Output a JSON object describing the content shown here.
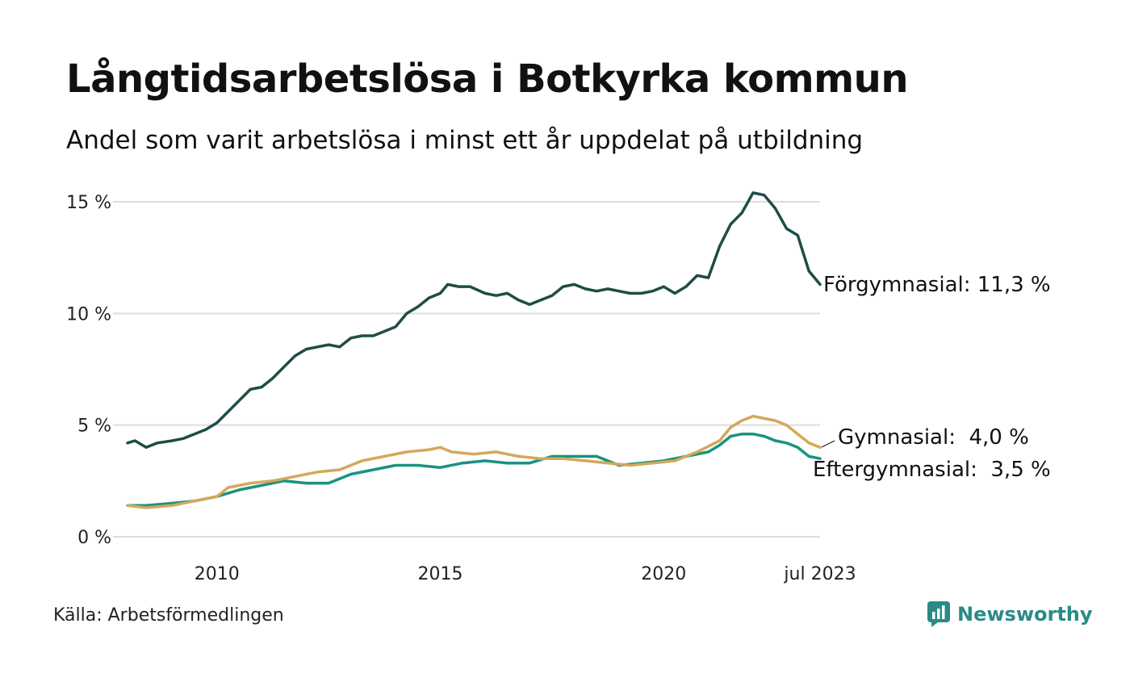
{
  "header": {
    "title": "Långtidsarbetslösa i Botkyrka kommun",
    "subtitle": "Andel som varit arbetslösa i minst ett år uppdelat på utbildning"
  },
  "footer": {
    "source": "Källa: Arbetsförmedlingen",
    "brand": "Newsworthy"
  },
  "colors": {
    "forgymnasial": "#1e4d47",
    "gymnasial": "#d4a85a",
    "eftergymnasial": "#1a9281",
    "grid": "#dddddd"
  },
  "chart_data": {
    "type": "line",
    "x_range": [
      "2008-01",
      "2023-07"
    ],
    "ylim": [
      0,
      15
    ],
    "yticks": [
      {
        "value": 0,
        "label": "0 %"
      },
      {
        "value": 5,
        "label": "5 %"
      },
      {
        "value": 10,
        "label": "10 %"
      },
      {
        "value": 15,
        "label": "15 %"
      }
    ],
    "xticks": [
      {
        "date": "2010-01",
        "label": "2010"
      },
      {
        "date": "2015-01",
        "label": "2015"
      },
      {
        "date": "2020-01",
        "label": "2020"
      },
      {
        "date": "2023-07",
        "label": "jul 2023"
      }
    ],
    "grid": true,
    "legend": "end-of-line labels",
    "series": [
      {
        "name": "Förgymnasial",
        "end_label": "Förgymnasial: 11,3 %",
        "color_key": "forgymnasial",
        "points": [
          [
            "2008-01",
            4.2
          ],
          [
            "2008-03",
            4.3
          ],
          [
            "2008-06",
            4.0
          ],
          [
            "2008-09",
            4.2
          ],
          [
            "2009-01",
            4.3
          ],
          [
            "2009-04",
            4.4
          ],
          [
            "2009-07",
            4.6
          ],
          [
            "2009-10",
            4.8
          ],
          [
            "2010-01",
            5.1
          ],
          [
            "2010-04",
            5.6
          ],
          [
            "2010-07",
            6.1
          ],
          [
            "2010-10",
            6.6
          ],
          [
            "2011-01",
            6.7
          ],
          [
            "2011-04",
            7.1
          ],
          [
            "2011-07",
            7.6
          ],
          [
            "2011-10",
            8.1
          ],
          [
            "2012-01",
            8.4
          ],
          [
            "2012-04",
            8.5
          ],
          [
            "2012-07",
            8.6
          ],
          [
            "2012-10",
            8.5
          ],
          [
            "2013-01",
            8.9
          ],
          [
            "2013-04",
            9.0
          ],
          [
            "2013-07",
            9.0
          ],
          [
            "2013-10",
            9.2
          ],
          [
            "2014-01",
            9.4
          ],
          [
            "2014-04",
            10.0
          ],
          [
            "2014-07",
            10.3
          ],
          [
            "2014-10",
            10.7
          ],
          [
            "2015-01",
            10.9
          ],
          [
            "2015-03",
            11.3
          ],
          [
            "2015-06",
            11.2
          ],
          [
            "2015-09",
            11.2
          ],
          [
            "2016-01",
            10.9
          ],
          [
            "2016-04",
            10.8
          ],
          [
            "2016-07",
            10.9
          ],
          [
            "2016-10",
            10.6
          ],
          [
            "2017-01",
            10.4
          ],
          [
            "2017-04",
            10.6
          ],
          [
            "2017-07",
            10.8
          ],
          [
            "2017-10",
            11.2
          ],
          [
            "2018-01",
            11.3
          ],
          [
            "2018-04",
            11.1
          ],
          [
            "2018-07",
            11.0
          ],
          [
            "2018-10",
            11.1
          ],
          [
            "2019-01",
            11.0
          ],
          [
            "2019-04",
            10.9
          ],
          [
            "2019-07",
            10.9
          ],
          [
            "2019-10",
            11.0
          ],
          [
            "2020-01",
            11.2
          ],
          [
            "2020-04",
            10.9
          ],
          [
            "2020-07",
            11.2
          ],
          [
            "2020-10",
            11.7
          ],
          [
            "2021-01",
            11.6
          ],
          [
            "2021-04",
            13.0
          ],
          [
            "2021-07",
            14.0
          ],
          [
            "2021-10",
            14.5
          ],
          [
            "2022-01",
            15.4
          ],
          [
            "2022-04",
            15.3
          ],
          [
            "2022-07",
            14.7
          ],
          [
            "2022-10",
            13.8
          ],
          [
            "2023-01",
            13.5
          ],
          [
            "2023-04",
            11.9
          ],
          [
            "2023-07",
            11.3
          ]
        ]
      },
      {
        "name": "Gymnasial",
        "end_label": "Gymnasial:  4,0 %",
        "color_key": "gymnasial",
        "points": [
          [
            "2008-01",
            1.4
          ],
          [
            "2008-06",
            1.3
          ],
          [
            "2009-01",
            1.4
          ],
          [
            "2009-07",
            1.6
          ],
          [
            "2010-01",
            1.8
          ],
          [
            "2010-04",
            2.2
          ],
          [
            "2010-10",
            2.4
          ],
          [
            "2011-04",
            2.5
          ],
          [
            "2011-10",
            2.7
          ],
          [
            "2012-04",
            2.9
          ],
          [
            "2012-10",
            3.0
          ],
          [
            "2013-04",
            3.4
          ],
          [
            "2013-10",
            3.6
          ],
          [
            "2014-04",
            3.8
          ],
          [
            "2014-10",
            3.9
          ],
          [
            "2015-01",
            4.0
          ],
          [
            "2015-04",
            3.8
          ],
          [
            "2015-10",
            3.7
          ],
          [
            "2016-04",
            3.8
          ],
          [
            "2016-10",
            3.6
          ],
          [
            "2017-04",
            3.5
          ],
          [
            "2017-10",
            3.5
          ],
          [
            "2018-04",
            3.4
          ],
          [
            "2018-10",
            3.3
          ],
          [
            "2019-04",
            3.2
          ],
          [
            "2019-10",
            3.3
          ],
          [
            "2020-04",
            3.4
          ],
          [
            "2020-10",
            3.8
          ],
          [
            "2021-04",
            4.3
          ],
          [
            "2021-07",
            4.9
          ],
          [
            "2021-10",
            5.2
          ],
          [
            "2022-01",
            5.4
          ],
          [
            "2022-04",
            5.3
          ],
          [
            "2022-07",
            5.2
          ],
          [
            "2022-10",
            5.0
          ],
          [
            "2023-01",
            4.6
          ],
          [
            "2023-04",
            4.2
          ],
          [
            "2023-07",
            4.0
          ]
        ]
      },
      {
        "name": "Eftergymnasial",
        "end_label": "Eftergymnasial:  3,5 %",
        "color_key": "eftergymnasial",
        "points": [
          [
            "2008-01",
            1.4
          ],
          [
            "2008-06",
            1.4
          ],
          [
            "2009-01",
            1.5
          ],
          [
            "2009-07",
            1.6
          ],
          [
            "2010-01",
            1.8
          ],
          [
            "2010-07",
            2.1
          ],
          [
            "2011-01",
            2.3
          ],
          [
            "2011-07",
            2.5
          ],
          [
            "2012-01",
            2.4
          ],
          [
            "2012-07",
            2.4
          ],
          [
            "2013-01",
            2.8
          ],
          [
            "2013-07",
            3.0
          ],
          [
            "2014-01",
            3.2
          ],
          [
            "2014-07",
            3.2
          ],
          [
            "2015-01",
            3.1
          ],
          [
            "2015-07",
            3.3
          ],
          [
            "2016-01",
            3.4
          ],
          [
            "2016-07",
            3.3
          ],
          [
            "2017-01",
            3.3
          ],
          [
            "2017-07",
            3.6
          ],
          [
            "2018-01",
            3.6
          ],
          [
            "2018-07",
            3.6
          ],
          [
            "2019-01",
            3.2
          ],
          [
            "2019-07",
            3.3
          ],
          [
            "2020-01",
            3.4
          ],
          [
            "2020-07",
            3.6
          ],
          [
            "2021-01",
            3.8
          ],
          [
            "2021-04",
            4.1
          ],
          [
            "2021-07",
            4.5
          ],
          [
            "2021-10",
            4.6
          ],
          [
            "2022-01",
            4.6
          ],
          [
            "2022-04",
            4.5
          ],
          [
            "2022-07",
            4.3
          ],
          [
            "2022-10",
            4.2
          ],
          [
            "2023-01",
            4.0
          ],
          [
            "2023-04",
            3.6
          ],
          [
            "2023-07",
            3.5
          ]
        ]
      }
    ]
  }
}
